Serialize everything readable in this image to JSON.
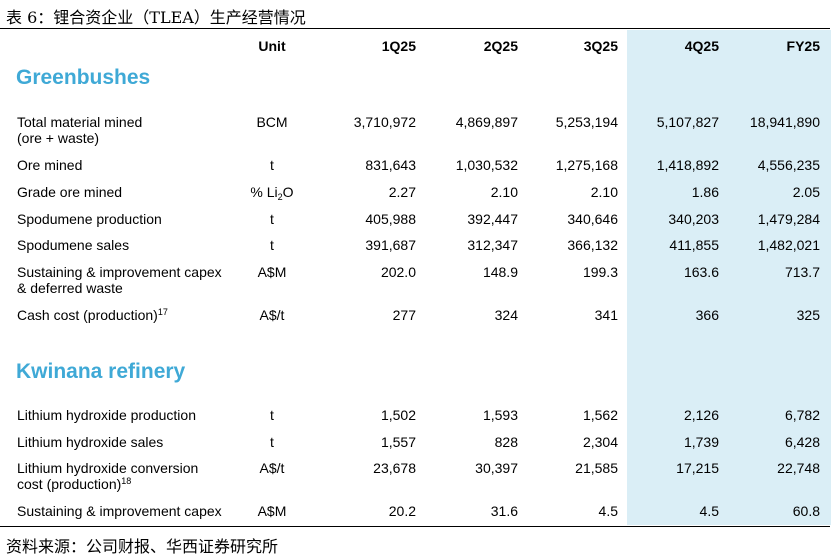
{
  "caption": "表 6：锂合资企业（TLEA）生产经营情况",
  "columns": {
    "unit": "Unit",
    "periods": [
      "1Q25",
      "2Q25",
      "3Q25",
      "4Q25",
      "FY25"
    ]
  },
  "sections": [
    {
      "title": "Greenbushes",
      "rows": [
        {
          "label_line1": "Total material mined",
          "label_line2": "(ore + waste)",
          "unit": "BCM",
          "values": [
            "3,710,972",
            "4,869,897",
            "5,253,194",
            "5,107,827",
            "18,941,890"
          ]
        },
        {
          "label_line1": "Ore mined",
          "unit": "t",
          "values": [
            "831,643",
            "1,030,532",
            "1,275,168",
            "1,418,892",
            "4,556,235"
          ]
        },
        {
          "label_line1": "Grade ore mined",
          "unit_prefix": "% Li",
          "unit_sub": "2",
          "unit_suffix": "O",
          "values": [
            "2.27",
            "2.10",
            "2.10",
            "1.86",
            "2.05"
          ]
        },
        {
          "label_line1": "Spodumene production",
          "unit": "t",
          "values": [
            "405,988",
            "392,447",
            "340,646",
            "340,203",
            "1,479,284"
          ]
        },
        {
          "label_line1": "Spodumene sales",
          "unit": "t",
          "values": [
            "391,687",
            "312,347",
            "366,132",
            "411,855",
            "1,482,021"
          ]
        },
        {
          "label_line1": "Sustaining & improvement capex",
          "label_line2": "& deferred waste",
          "unit": "A$M",
          "values": [
            "202.0",
            "148.9",
            "199.3",
            "163.6",
            "713.7"
          ]
        },
        {
          "label_line1": "Cash cost (production)",
          "label_sup": "17",
          "unit": "A$/t",
          "values": [
            "277",
            "324",
            "341",
            "366",
            "325"
          ]
        }
      ]
    },
    {
      "title": "Kwinana refinery",
      "rows": [
        {
          "label_line1": "Lithium hydroxide production",
          "unit": "t",
          "values": [
            "1,502",
            "1,593",
            "1,562",
            "2,126",
            "6,782"
          ]
        },
        {
          "label_line1": "Lithium hydroxide sales",
          "unit": "t",
          "values": [
            "1,557",
            "828",
            "2,304",
            "1,739",
            "6,428"
          ]
        },
        {
          "label_line1": "Lithium hydroxide conversion",
          "label_line2": "cost (production)",
          "label_sup": "18",
          "unit": "A$/t",
          "values": [
            "23,678",
            "30,397",
            "21,585",
            "17,215",
            "22,748"
          ]
        },
        {
          "label_line1": "Sustaining & improvement capex",
          "unit": "A$M",
          "values": [
            "20.2",
            "31.6",
            "4.5",
            "4.5",
            "60.8"
          ]
        }
      ]
    }
  ],
  "source": "资料来源：公司财报、华西证券研究所",
  "colors": {
    "section_title": "#3fa9d6",
    "highlight": "#daeef6"
  }
}
